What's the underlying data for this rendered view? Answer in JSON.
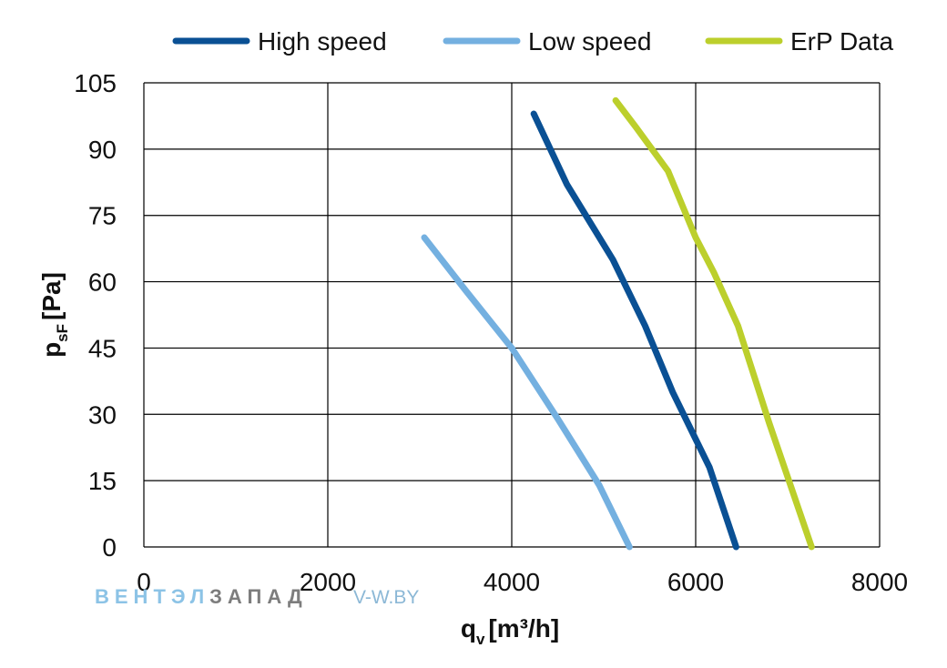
{
  "chart_data": {
    "type": "line",
    "xlabel_main": "q",
    "xlabel_sub": "v",
    "xlabel_unit": "[m³/h]",
    "ylabel_main": "p",
    "ylabel_sub": "sF",
    "ylabel_unit": "[Pa]",
    "xlim": [
      0,
      8000
    ],
    "ylim": [
      0,
      105
    ],
    "xticks": [
      0,
      2000,
      4000,
      6000,
      8000
    ],
    "yticks": [
      0,
      15,
      30,
      45,
      60,
      75,
      90,
      105
    ],
    "grid": true,
    "legend_position": "top",
    "series": [
      {
        "name": "High speed",
        "color": "#0a5094",
        "points": [
          [
            4240,
            98
          ],
          [
            4600,
            82
          ],
          [
            5100,
            65
          ],
          [
            5450,
            50
          ],
          [
            5750,
            35
          ],
          [
            6150,
            18
          ],
          [
            6440,
            0
          ]
        ]
      },
      {
        "name": "Low speed",
        "color": "#74b0e0",
        "points": [
          [
            3050,
            70
          ],
          [
            3500,
            58
          ],
          [
            4000,
            45
          ],
          [
            4500,
            29
          ],
          [
            4950,
            14
          ],
          [
            5280,
            0
          ]
        ]
      },
      {
        "name": "ErP Data",
        "color": "#bccf2c",
        "points": [
          [
            5130,
            101
          ],
          [
            5350,
            95
          ],
          [
            5700,
            85
          ],
          [
            6000,
            70
          ],
          [
            6200,
            62
          ],
          [
            6460,
            50
          ],
          [
            6800,
            28
          ],
          [
            7260,
            0
          ]
        ]
      }
    ]
  },
  "watermark": {
    "brand_part1": "ВЕНТЭЛ",
    "brand_part2": "ЗАПАД",
    "site": "V-W.BY"
  }
}
